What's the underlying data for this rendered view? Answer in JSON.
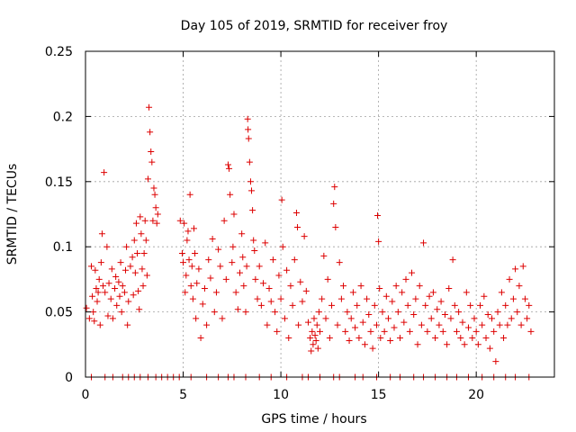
{
  "chart_data": {
    "type": "scatter",
    "title": "Day 105 of 2019, SRMTID for receiver froy",
    "xlabel": "GPS time / hours",
    "ylabel": "SRMTID / TECUs",
    "xlim": [
      0,
      24
    ],
    "ylim": [
      0,
      0.25
    ],
    "x_ticks": [
      0,
      5,
      10,
      15,
      20
    ],
    "x_tick_labels": [
      "0",
      "5",
      "10",
      "15",
      "20"
    ],
    "y_ticks": [
      0,
      0.05,
      0.1,
      0.15,
      0.2,
      0.25
    ],
    "y_tick_labels": [
      "0",
      "0.05",
      "0.1",
      "0.15",
      "0.2",
      "0.25"
    ],
    "grid": true,
    "marker": "+",
    "series": [
      {
        "name": "SRMTID",
        "color": "#dd0000",
        "points": [
          [
            0.05,
            0.053
          ],
          [
            0.2,
            0.045
          ],
          [
            0.3,
            0.085
          ],
          [
            0.35,
            0.062
          ],
          [
            0.4,
            0.05
          ],
          [
            0.45,
            0.043
          ],
          [
            0.5,
            0.082
          ],
          [
            0.55,
            0.068
          ],
          [
            0.6,
            0.058
          ],
          [
            0.65,
            0.065
          ],
          [
            0.7,
            0.075
          ],
          [
            0.75,
            0.04
          ],
          [
            0.8,
            0.088
          ],
          [
            0.85,
            0.11
          ],
          [
            0.9,
            0.07
          ],
          [
            0.95,
            0.157
          ],
          [
            1.0,
            0.065
          ],
          [
            1.1,
            0.1
          ],
          [
            1.15,
            0.047
          ],
          [
            1.2,
            0.072
          ],
          [
            1.3,
            0.06
          ],
          [
            1.35,
            0.083
          ],
          [
            1.4,
            0.045
          ],
          [
            1.5,
            0.068
          ],
          [
            1.55,
            0.077
          ],
          [
            1.6,
            0.055
          ],
          [
            1.7,
            0.073
          ],
          [
            1.75,
            0.062
          ],
          [
            1.8,
            0.088
          ],
          [
            1.85,
            0.05
          ],
          [
            1.9,
            0.07
          ],
          [
            2.0,
            0.065
          ],
          [
            2.05,
            0.082
          ],
          [
            2.1,
            0.1
          ],
          [
            2.15,
            0.04
          ],
          [
            2.2,
            0.058
          ],
          [
            2.3,
            0.085
          ],
          [
            2.4,
            0.092
          ],
          [
            2.45,
            0.063
          ],
          [
            2.5,
            0.105
          ],
          [
            2.55,
            0.08
          ],
          [
            2.6,
            0.118
          ],
          [
            2.65,
            0.095
          ],
          [
            2.7,
            0.066
          ],
          [
            2.75,
            0.052
          ],
          [
            2.8,
            0.123
          ],
          [
            2.85,
            0.11
          ],
          [
            2.9,
            0.083
          ],
          [
            2.95,
            0.07
          ],
          [
            3.0,
            0.095
          ],
          [
            3.05,
            0.12
          ],
          [
            3.1,
            0.105
          ],
          [
            3.15,
            0.078
          ],
          [
            3.2,
            0.152
          ],
          [
            3.25,
            0.207
          ],
          [
            3.3,
            0.188
          ],
          [
            3.35,
            0.173
          ],
          [
            3.4,
            0.165
          ],
          [
            3.45,
            0.12
          ],
          [
            3.5,
            0.145
          ],
          [
            3.55,
            0.14
          ],
          [
            3.6,
            0.13
          ],
          [
            3.65,
            0.118
          ],
          [
            3.7,
            0.125
          ],
          [
            4.85,
            0.12
          ],
          [
            4.95,
            0.095
          ],
          [
            5.0,
            0.088
          ],
          [
            5.05,
            0.118
          ],
          [
            5.1,
            0.065
          ],
          [
            5.15,
            0.078
          ],
          [
            5.2,
            0.105
          ],
          [
            5.25,
            0.112
          ],
          [
            5.3,
            0.09
          ],
          [
            5.35,
            0.14
          ],
          [
            5.4,
            0.07
          ],
          [
            5.45,
            0.085
          ],
          [
            5.5,
            0.06
          ],
          [
            5.55,
            0.114
          ],
          [
            5.6,
            0.095
          ],
          [
            5.65,
            0.045
          ],
          [
            5.7,
            0.072
          ],
          [
            5.8,
            0.083
          ],
          [
            5.9,
            0.03
          ],
          [
            6.0,
            0.056
          ],
          [
            6.1,
            0.068
          ],
          [
            6.2,
            0.04
          ],
          [
            6.3,
            0.09
          ],
          [
            6.4,
            0.076
          ],
          [
            6.5,
            0.106
          ],
          [
            6.6,
            0.05
          ],
          [
            6.7,
            0.065
          ],
          [
            6.8,
            0.098
          ],
          [
            6.9,
            0.085
          ],
          [
            7.0,
            0.045
          ],
          [
            7.1,
            0.12
          ],
          [
            7.2,
            0.075
          ],
          [
            7.3,
            0.163
          ],
          [
            7.35,
            0.16
          ],
          [
            7.4,
            0.14
          ],
          [
            7.5,
            0.088
          ],
          [
            7.55,
            0.1
          ],
          [
            7.6,
            0.125
          ],
          [
            7.7,
            0.065
          ],
          [
            7.8,
            0.052
          ],
          [
            7.9,
            0.08
          ],
          [
            8.0,
            0.11
          ],
          [
            8.05,
            0.092
          ],
          [
            8.1,
            0.07
          ],
          [
            8.2,
            0.05
          ],
          [
            8.25,
            0.085
          ],
          [
            8.3,
            0.198
          ],
          [
            8.32,
            0.19
          ],
          [
            8.35,
            0.183
          ],
          [
            8.4,
            0.165
          ],
          [
            8.45,
            0.15
          ],
          [
            8.5,
            0.143
          ],
          [
            8.55,
            0.128
          ],
          [
            8.6,
            0.105
          ],
          [
            8.65,
            0.097
          ],
          [
            8.7,
            0.075
          ],
          [
            8.8,
            0.06
          ],
          [
            8.9,
            0.085
          ],
          [
            9.0,
            0.055
          ],
          [
            9.1,
            0.072
          ],
          [
            9.2,
            0.103
          ],
          [
            9.3,
            0.04
          ],
          [
            9.4,
            0.068
          ],
          [
            9.5,
            0.058
          ],
          [
            9.6,
            0.09
          ],
          [
            9.7,
            0.05
          ],
          [
            9.8,
            0.035
          ],
          [
            9.9,
            0.078
          ],
          [
            10.0,
            0.06
          ],
          [
            10.05,
            0.136
          ],
          [
            10.1,
            0.1
          ],
          [
            10.2,
            0.045
          ],
          [
            10.3,
            0.082
          ],
          [
            10.4,
            0.03
          ],
          [
            10.5,
            0.07
          ],
          [
            10.6,
            0.055
          ],
          [
            10.7,
            0.09
          ],
          [
            10.8,
            0.126
          ],
          [
            10.85,
            0.115
          ],
          [
            10.9,
            0.04
          ],
          [
            11.0,
            0.073
          ],
          [
            11.1,
            0.058
          ],
          [
            11.2,
            0.108
          ],
          [
            11.3,
            0.066
          ],
          [
            11.4,
            0.042
          ],
          [
            11.5,
            0.03
          ],
          [
            11.55,
            0.02
          ],
          [
            11.6,
            0.035
          ],
          [
            11.65,
            0.025
          ],
          [
            11.7,
            0.045
          ],
          [
            11.75,
            0.032
          ],
          [
            11.8,
            0.028
          ],
          [
            11.85,
            0.04
          ],
          [
            11.9,
            0.022
          ],
          [
            11.95,
            0.05
          ],
          [
            12.0,
            0.035
          ],
          [
            12.1,
            0.06
          ],
          [
            12.2,
            0.093
          ],
          [
            12.3,
            0.045
          ],
          [
            12.4,
            0.075
          ],
          [
            12.5,
            0.03
          ],
          [
            12.6,
            0.055
          ],
          [
            12.7,
            0.133
          ],
          [
            12.75,
            0.146
          ],
          [
            12.8,
            0.115
          ],
          [
            12.9,
            0.04
          ],
          [
            13.0,
            0.088
          ],
          [
            13.1,
            0.06
          ],
          [
            13.2,
            0.07
          ],
          [
            13.3,
            0.035
          ],
          [
            13.4,
            0.05
          ],
          [
            13.5,
            0.028
          ],
          [
            13.6,
            0.045
          ],
          [
            13.7,
            0.065
          ],
          [
            13.8,
            0.038
          ],
          [
            13.9,
            0.055
          ],
          [
            14.0,
            0.03
          ],
          [
            14.1,
            0.07
          ],
          [
            14.2,
            0.042
          ],
          [
            14.3,
            0.025
          ],
          [
            14.4,
            0.06
          ],
          [
            14.5,
            0.048
          ],
          [
            14.6,
            0.035
          ],
          [
            14.7,
            0.022
          ],
          [
            14.8,
            0.055
          ],
          [
            14.9,
            0.04
          ],
          [
            14.95,
            0.124
          ],
          [
            15.0,
            0.104
          ],
          [
            15.05,
            0.068
          ],
          [
            15.1,
            0.03
          ],
          [
            15.2,
            0.05
          ],
          [
            15.3,
            0.035
          ],
          [
            15.4,
            0.062
          ],
          [
            15.5,
            0.045
          ],
          [
            15.6,
            0.028
          ],
          [
            15.7,
            0.058
          ],
          [
            15.8,
            0.038
          ],
          [
            15.9,
            0.07
          ],
          [
            16.0,
            0.05
          ],
          [
            16.1,
            0.03
          ],
          [
            16.2,
            0.065
          ],
          [
            16.3,
            0.042
          ],
          [
            16.4,
            0.075
          ],
          [
            16.5,
            0.055
          ],
          [
            16.6,
            0.035
          ],
          [
            16.7,
            0.08
          ],
          [
            16.8,
            0.048
          ],
          [
            16.9,
            0.06
          ],
          [
            17.0,
            0.025
          ],
          [
            17.1,
            0.07
          ],
          [
            17.2,
            0.04
          ],
          [
            17.3,
            0.103
          ],
          [
            17.4,
            0.055
          ],
          [
            17.5,
            0.035
          ],
          [
            17.6,
            0.062
          ],
          [
            17.7,
            0.045
          ],
          [
            17.8,
            0.065
          ],
          [
            17.9,
            0.03
          ],
          [
            18.0,
            0.052
          ],
          [
            18.1,
            0.04
          ],
          [
            18.2,
            0.058
          ],
          [
            18.3,
            0.035
          ],
          [
            18.4,
            0.048
          ],
          [
            18.5,
            0.025
          ],
          [
            18.6,
            0.068
          ],
          [
            18.7,
            0.045
          ],
          [
            18.8,
            0.09
          ],
          [
            18.9,
            0.055
          ],
          [
            19.0,
            0.035
          ],
          [
            19.1,
            0.05
          ],
          [
            19.2,
            0.03
          ],
          [
            19.3,
            0.042
          ],
          [
            19.4,
            0.025
          ],
          [
            19.5,
            0.065
          ],
          [
            19.6,
            0.038
          ],
          [
            19.7,
            0.055
          ],
          [
            19.8,
            0.03
          ],
          [
            19.9,
            0.045
          ],
          [
            20.0,
            0.035
          ],
          [
            20.1,
            0.025
          ],
          [
            20.2,
            0.055
          ],
          [
            20.3,
            0.04
          ],
          [
            20.4,
            0.062
          ],
          [
            20.5,
            0.03
          ],
          [
            20.6,
            0.048
          ],
          [
            20.7,
            0.022
          ],
          [
            20.8,
            0.045
          ],
          [
            20.9,
            0.035
          ],
          [
            21.0,
            0.012
          ],
          [
            21.1,
            0.05
          ],
          [
            21.2,
            0.04
          ],
          [
            21.3,
            0.065
          ],
          [
            21.4,
            0.03
          ],
          [
            21.5,
            0.055
          ],
          [
            21.6,
            0.04
          ],
          [
            21.7,
            0.075
          ],
          [
            21.8,
            0.045
          ],
          [
            21.9,
            0.06
          ],
          [
            22.0,
            0.083
          ],
          [
            22.1,
            0.05
          ],
          [
            22.2,
            0.07
          ],
          [
            22.3,
            0.04
          ],
          [
            22.4,
            0.085
          ],
          [
            22.5,
            0.06
          ],
          [
            22.6,
            0.045
          ],
          [
            22.7,
            0.055
          ],
          [
            22.8,
            0.035
          ]
        ]
      },
      {
        "name": "zero markers",
        "color": "#dd0000",
        "points": [
          [
            0.3,
            0
          ],
          [
            1.0,
            0
          ],
          [
            1.4,
            0
          ],
          [
            1.9,
            0
          ],
          [
            2.2,
            0
          ],
          [
            2.5,
            0
          ],
          [
            2.8,
            0
          ],
          [
            3.2,
            0
          ],
          [
            3.6,
            0
          ],
          [
            3.9,
            0
          ],
          [
            4.2,
            0
          ],
          [
            4.5,
            0
          ],
          [
            4.8,
            0
          ],
          [
            5.4,
            0
          ],
          [
            6.2,
            0
          ],
          [
            6.8,
            0
          ],
          [
            7.3,
            0
          ],
          [
            7.6,
            0
          ],
          [
            8.2,
            0
          ],
          [
            8.9,
            0
          ],
          [
            9.5,
            0
          ],
          [
            10.3,
            0
          ],
          [
            11.1,
            0
          ],
          [
            11.4,
            0
          ],
          [
            12.0,
            0
          ],
          [
            12.7,
            0
          ],
          [
            13.0,
            0
          ],
          [
            13.8,
            0
          ],
          [
            14.2,
            0
          ],
          [
            14.9,
            0
          ],
          [
            15.6,
            0
          ],
          [
            16.1,
            0
          ],
          [
            16.8,
            0
          ],
          [
            17.3,
            0
          ],
          [
            17.9,
            0
          ],
          [
            18.5,
            0
          ],
          [
            19.0,
            0
          ],
          [
            19.6,
            0
          ],
          [
            20.3,
            0
          ],
          [
            20.9,
            0
          ],
          [
            21.5,
            0
          ],
          [
            22.0,
            0
          ],
          [
            22.7,
            0
          ]
        ]
      }
    ]
  }
}
